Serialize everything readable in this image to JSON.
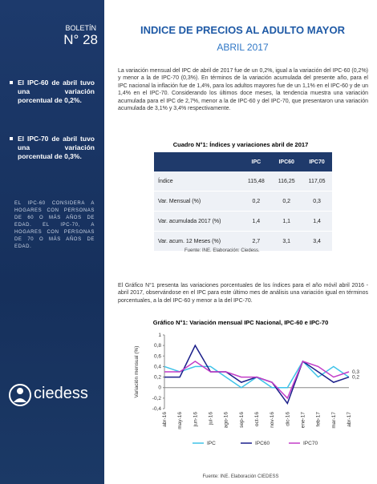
{
  "sidebar": {
    "label": "BOLETÍN",
    "number": "N° 28",
    "bullets": [
      "El IPC-60 de abril tuvo una variación porcentual de 0,2%.",
      "El IPC-70 de abril tuvo una variación porcentual de 0,3%."
    ],
    "note": "EL IPC-60 CONSIDERA A HOGARES CON PERSONAS DE 60 O MÁS AÑOS DE EDAD. EL IPC-70, A HOGARES CON PERSONAS DE 70 O MÁS AÑOS DE EDAD.",
    "logo": "ciedess"
  },
  "header": {
    "title": "INDICE DE PRECIOS AL ADULTO MAYOR",
    "subtitle": "ABRIL 2017"
  },
  "paragraphs": [
    "La variación mensual del IPC de abril de 2017 fue de un 0,2%, igual a la variación del IPC-60 (0,2%) y menor a la de IPC-70 (0,3%). En términos de la variación acumulada del presente año, para el IPC nacional la inflación fue de 1,4%, para los adultos mayores fue de un 1,1% en el IPC-60 y de un 1,4% en el IPC-70. Considerando los últimos doce meses, la tendencia muestra una variación acumulada para el IPC de 2,7%, menor a la de IPC-60 y del IPC-70, que presentaron una variación acumulada de 3,1% y 3,4% respectivamente.",
    "El Gráfico N°1 presenta las variaciones porcentuales de los índices para el año móvil abril 2016 - abril 2017, observándose en el IPC para este último mes de análisis una variación igual en términos porcentuales, a la del IPC-60 y menor a la del IPC-70."
  ],
  "table": {
    "title": "Cuadro N°1: Índices y variaciones abril de 2017",
    "columns": [
      "IPC",
      "IPC60",
      "IPC70"
    ],
    "rows": [
      {
        "label": "Índice",
        "cells": [
          "115,48",
          "116,25",
          "117,05"
        ]
      },
      {
        "label": "Var. Mensual (%)",
        "cells": [
          "0,2",
          "0,2",
          "0,3"
        ]
      },
      {
        "label": "Var. acumulada 2017 (%)",
        "cells": [
          "1,4",
          "1,1",
          "1,4"
        ]
      },
      {
        "label": "Var. acum. 12 Meses (%)",
        "cells": [
          "2,7",
          "3,1",
          "3,4"
        ]
      }
    ],
    "source": "Fuente: INE. Elaboración: Ciedess."
  },
  "chart": {
    "type": "line",
    "title": "Gráfico N°1: Variación mensual IPC Nacional, IPC-60 e IPC-70",
    "y_label": "Variación mensual (%)",
    "categories": [
      "abr-16",
      "may-16",
      "jun-16",
      "jul-16",
      "ago-16",
      "sep-16",
      "oct-16",
      "nov-16",
      "dic-16",
      "ene-17",
      "feb-17",
      "mar-17",
      "abr-17"
    ],
    "ylim": [
      -0.4,
      1
    ],
    "yticks": [
      {
        "value": -0.4,
        "label": "-0,4"
      },
      {
        "value": -0.2,
        "label": "-0,2"
      },
      0,
      {
        "value": 0.2,
        "label": "0,2"
      },
      {
        "value": 0.4,
        "label": "0,4"
      },
      {
        "value": 0.6,
        "label": "0,6"
      },
      {
        "value": 0.8,
        "label": "0,8"
      },
      1
    ],
    "series": [
      {
        "name": "IPC",
        "color": "#3fc3e8",
        "values": [
          0.4,
          0.3,
          0.4,
          0.4,
          0.2,
          0,
          0.2,
          0,
          0,
          0.5,
          0.2,
          0.4,
          0.2
        ]
      },
      {
        "name": "IPC60",
        "color": "#1b1f8a",
        "values": [
          0.2,
          0.2,
          0.8,
          0.3,
          0.3,
          0.1,
          0.2,
          0.1,
          -0.3,
          0.5,
          0.3,
          0.1,
          0.2
        ],
        "value_labels": [
          null,
          null,
          null,
          null,
          null,
          null,
          null,
          null,
          null,
          null,
          null,
          null,
          "0,2"
        ]
      },
      {
        "name": "IPC70",
        "color": "#c23cc8",
        "values": [
          0.3,
          0.3,
          0.5,
          0.3,
          0.3,
          0.2,
          0.2,
          0.1,
          -0.2,
          0.5,
          0.4,
          0.2,
          0.3
        ],
        "value_labels": [
          null,
          null,
          null,
          null,
          null,
          null,
          null,
          null,
          null,
          null,
          null,
          null,
          "0,3"
        ]
      }
    ],
    "source": "Fuente: INE. Elaboración CIEDESS"
  }
}
